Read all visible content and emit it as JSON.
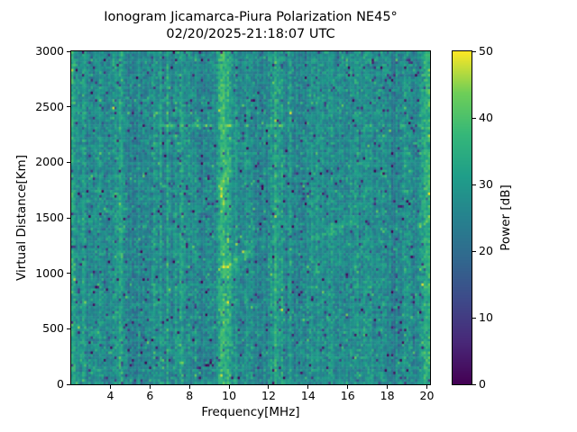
{
  "title": {
    "line1": "Ionogram Jicamarca-Piura Polarization NE45°",
    "line2": "02/20/2025-21:18:07 UTC"
  },
  "axes": {
    "xlabel": "Frequency[MHz]",
    "ylabel": "Virtual Distance[Km]"
  },
  "colorbar_label": "Power [dB]",
  "chart_data": {
    "type": "heatmap",
    "title": "Ionogram Jicamarca-Piura Polarization NE45°",
    "subtitle": "02/20/2025-21:18:07 UTC",
    "xlabel": "Frequency[MHz]",
    "ylabel": "Virtual Distance[Km]",
    "x_range": [
      2.02,
      20.16
    ],
    "y_range": [
      0,
      3000
    ],
    "x_ticks": [
      4,
      6,
      8,
      10,
      12,
      14,
      16,
      18,
      20
    ],
    "y_ticks": [
      0,
      500,
      1000,
      1500,
      2000,
      2500,
      3000
    ],
    "colorbar": {
      "label": "Power [dB]",
      "ticks": [
        0,
        10,
        20,
        30,
        40,
        50
      ],
      "range": [
        0,
        50
      ],
      "colormap": "viridis"
    },
    "colormap_stops": [
      "#440154",
      "#482878",
      "#3e4989",
      "#31688e",
      "#26828e",
      "#1f9e89",
      "#35b779",
      "#6ece58",
      "#fde725"
    ],
    "grid": {
      "cols": 166,
      "rows": 132
    },
    "seed": 20250220,
    "background_power_db": {
      "mean": 27,
      "std": 3.6,
      "column_jitter_std": 1.2
    },
    "speckle": {
      "dark_prob": 0.025,
      "dark_amp": -19,
      "deep_dark_prob": 0.005,
      "deep_dark_amp": -26,
      "bright_prob": 0.02,
      "bright_amp": 9
    },
    "interference_stripes": [
      [
        2.08,
        0.1,
        7
      ],
      [
        2.5,
        0.25,
        2
      ],
      [
        2.95,
        0.25,
        -2
      ],
      [
        3.35,
        0.25,
        3
      ],
      [
        3.9,
        0.2,
        -1.5
      ],
      [
        4.45,
        0.22,
        4
      ],
      [
        5.25,
        0.4,
        -2.5
      ],
      [
        6.25,
        0.06,
        4
      ],
      [
        6.55,
        0.05,
        3
      ],
      [
        6.9,
        0.05,
        4
      ],
      [
        7.25,
        0.05,
        3
      ],
      [
        7.6,
        0.06,
        4
      ],
      [
        7.95,
        0.05,
        3
      ],
      [
        8.3,
        0.05,
        4
      ],
      [
        8.75,
        0.2,
        -2
      ],
      [
        9.55,
        0.12,
        5
      ],
      [
        9.75,
        0.16,
        9
      ],
      [
        10.0,
        0.08,
        4
      ],
      [
        10.35,
        0.05,
        3
      ],
      [
        10.7,
        0.2,
        -1.5
      ],
      [
        11.1,
        0.3,
        1.5
      ],
      [
        11.6,
        0.25,
        -2
      ],
      [
        12.1,
        0.05,
        3
      ],
      [
        12.38,
        0.055,
        11
      ],
      [
        12.65,
        0.05,
        3
      ],
      [
        13.1,
        0.05,
        2.5
      ],
      [
        13.6,
        0.3,
        -2
      ],
      [
        14.4,
        0.3,
        1.5
      ],
      [
        15.2,
        0.05,
        2
      ],
      [
        15.7,
        0.2,
        -1.5
      ],
      [
        16.1,
        0.2,
        1.5
      ],
      [
        16.45,
        0.05,
        3
      ],
      [
        16.9,
        0.06,
        3.5
      ],
      [
        17.15,
        0.05,
        2.5
      ],
      [
        17.8,
        0.06,
        2.5
      ],
      [
        18.3,
        0.3,
        -2
      ],
      [
        19.0,
        0.15,
        2
      ],
      [
        19.4,
        0.15,
        -1.5
      ],
      [
        19.95,
        0.18,
        6
      ],
      [
        20.15,
        0.1,
        5
      ]
    ],
    "horizontal_streaks": [
      [
        2330,
        12,
        6.3,
        12.7,
        9,
        0.6
      ],
      [
        2330,
        12,
        16.3,
        19.6,
        7,
        0.55
      ],
      [
        884,
        10,
        6.3,
        20.16,
        2.5,
        0.8
      ]
    ],
    "echo_traces": [
      {
        "points": [
          [
            9.7,
            1040
          ],
          [
            10.1,
            1075
          ],
          [
            10.5,
            1120
          ],
          [
            10.9,
            1180
          ],
          [
            11.2,
            1250
          ],
          [
            11.45,
            1330
          ]
        ],
        "amp": 7,
        "sigma_km": 35
      },
      {
        "points": [
          [
            14.2,
            1330
          ],
          [
            14.9,
            1375
          ],
          [
            15.6,
            1430
          ],
          [
            16.3,
            1500
          ]
        ],
        "amp": 3.5,
        "sigma_km": 40
      },
      {
        "points": [
          [
            9.6,
            1760
          ],
          [
            10.0,
            1880
          ],
          [
            10.4,
            2050
          ],
          [
            10.7,
            2230
          ]
        ],
        "amp": 3,
        "sigma_km": 45
      }
    ]
  }
}
